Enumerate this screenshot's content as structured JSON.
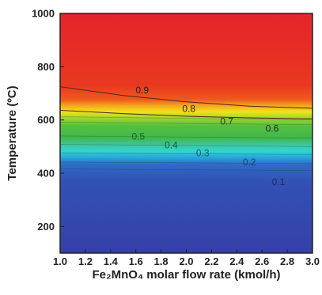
{
  "chart_data": {
    "type": "heatmap",
    "title": "",
    "xlabel": "Fe₂MnO₄ molar flow rate (kmol/h)",
    "ylabel": "Temperature (ºC)",
    "xlim": [
      1.0,
      3.0
    ],
    "ylim": [
      100,
      1000
    ],
    "x_ticks": [
      "1.0",
      "1.2",
      "1.4",
      "1.6",
      "1.8",
      "2.0",
      "2.2",
      "2.4",
      "2.6",
      "2.8",
      "3.0"
    ],
    "y_ticks": [
      "200",
      "400",
      "600",
      "800",
      "1000"
    ],
    "grid": false,
    "colormap": [
      "#3440a8",
      "#2f6bc8",
      "#27a8dc",
      "#2fd6cf",
      "#3fb84c",
      "#a6d630",
      "#f2e21a",
      "#f4a81d",
      "#e8481f",
      "#e3281f"
    ],
    "contours": [
      {
        "label": "0.9",
        "x": [
          1.0,
          1.5,
          2.0,
          2.5,
          3.0
        ],
        "y": [
          725,
          692,
          668,
          652,
          644
        ]
      },
      {
        "label": "0.8",
        "x": [
          1.0,
          1.5,
          2.0,
          2.5,
          3.0
        ],
        "y": [
          636,
          624,
          614,
          608,
          604
        ]
      },
      {
        "label": "0.7",
        "x": [
          1.0,
          3.0
        ],
        "y": [
          612,
          600
        ]
      },
      {
        "label": "0.6",
        "x": [
          1.0,
          3.0
        ],
        "y": [
          592,
          582
        ]
      },
      {
        "label": "0.5",
        "x": [
          1.0,
          3.0
        ],
        "y": [
          540,
          532
        ]
      },
      {
        "label": "0.4",
        "x": [
          1.0,
          3.0
        ],
        "y": [
          508,
          500
        ]
      },
      {
        "label": "0.3",
        "x": [
          1.0,
          3.0
        ],
        "y": [
          476,
          470
        ]
      },
      {
        "label": "0.2",
        "x": [
          1.0,
          3.0
        ],
        "y": [
          442,
          436
        ]
      },
      {
        "label": "0.1",
        "x": [
          1.0,
          3.0
        ],
        "y": [
          416,
          410
        ]
      }
    ],
    "labels": [
      {
        "text": "0.9",
        "x": 1.65,
        "y": 700,
        "color": "#222222"
      },
      {
        "text": "0.8",
        "x": 2.02,
        "y": 630,
        "color": "#222222"
      },
      {
        "text": "0.7",
        "x": 2.32,
        "y": 582,
        "color": "#333333"
      },
      {
        "text": "0.6",
        "x": 2.68,
        "y": 556,
        "color": "#2a2a2a"
      },
      {
        "text": "0.5",
        "x": 1.62,
        "y": 526,
        "color": "#1d5e2a"
      },
      {
        "text": "0.4",
        "x": 1.88,
        "y": 494,
        "color": "#1d5e2a"
      },
      {
        "text": "0.3",
        "x": 2.13,
        "y": 464,
        "color": "#1d5e5e"
      },
      {
        "text": "0.2",
        "x": 2.5,
        "y": 430,
        "color": "#1d3f7a"
      },
      {
        "text": "0.1",
        "x": 2.73,
        "y": 355,
        "color": "#1e2a70"
      }
    ]
  }
}
